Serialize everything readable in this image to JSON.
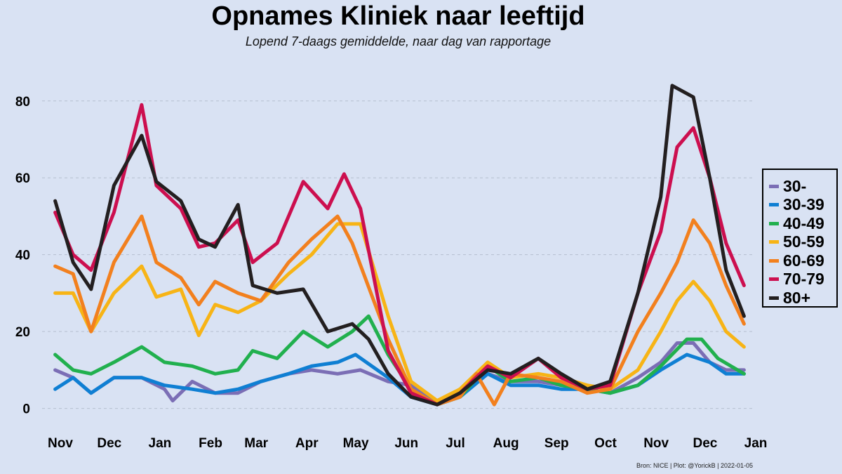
{
  "header": {
    "title": "Opnames Kliniek naar leeftijd",
    "subtitle": "Lopend 7-daags gemiddelde, naar dag van rapportage"
  },
  "source_note": "Bron: NICE | Plot: @YorickB  |  2022-01-05",
  "chart_data": {
    "type": "line",
    "title": "Opnames Kliniek naar leeftijd",
    "subtitle": "Lopend 7-daags gemiddelde, naar dag van rapportage",
    "xlabel": "",
    "ylabel": "",
    "x_range": [
      "2020-11-01",
      "2022-01-10"
    ],
    "ylim": [
      -3,
      88
    ],
    "x_ticks": [
      {
        "date": "2020-11-01",
        "label": "Nov"
      },
      {
        "date": "2020-12-01",
        "label": "Dec"
      },
      {
        "date": "2021-01-01",
        "label": "Jan"
      },
      {
        "date": "2021-02-01",
        "label": "Feb"
      },
      {
        "date": "2021-03-01",
        "label": "Mar"
      },
      {
        "date": "2021-04-01",
        "label": "Apr"
      },
      {
        "date": "2021-05-01",
        "label": "May"
      },
      {
        "date": "2021-06-01",
        "label": "Jun"
      },
      {
        "date": "2021-07-01",
        "label": "Jul"
      },
      {
        "date": "2021-08-01",
        "label": "Aug"
      },
      {
        "date": "2021-09-01",
        "label": "Sep"
      },
      {
        "date": "2021-10-01",
        "label": "Oct"
      },
      {
        "date": "2021-11-01",
        "label": "Nov"
      },
      {
        "date": "2021-12-01",
        "label": "Dec"
      },
      {
        "date": "2022-01-01",
        "label": "Jan"
      }
    ],
    "y_ticks": [
      0,
      20,
      40,
      60,
      80
    ],
    "grid": "horizontal dashed",
    "legend_position": "right",
    "series": [
      {
        "name": "30-",
        "color": "#7b6eb5",
        "points": [
          [
            "2020-11-09",
            10
          ],
          [
            "2020-11-20",
            8
          ],
          [
            "2020-12-01",
            4
          ],
          [
            "2020-12-15",
            8
          ],
          [
            "2021-01-01",
            8
          ],
          [
            "2021-01-15",
            5
          ],
          [
            "2021-01-20",
            2
          ],
          [
            "2021-02-01",
            7
          ],
          [
            "2021-02-15",
            4
          ],
          [
            "2021-03-01",
            4
          ],
          [
            "2021-03-15",
            7
          ],
          [
            "2021-04-01",
            9
          ],
          [
            "2021-04-15",
            10
          ],
          [
            "2021-05-01",
            9
          ],
          [
            "2021-05-15",
            10
          ],
          [
            "2021-06-01",
            7
          ],
          [
            "2021-06-15",
            6
          ],
          [
            "2021-07-01",
            1
          ],
          [
            "2021-07-15",
            5
          ],
          [
            "2021-08-01",
            9
          ],
          [
            "2021-08-15",
            7
          ],
          [
            "2021-09-01",
            7
          ],
          [
            "2021-09-15",
            6
          ],
          [
            "2021-10-01",
            5
          ],
          [
            "2021-10-15",
            4
          ],
          [
            "2021-11-01",
            8
          ],
          [
            "2021-11-15",
            12
          ],
          [
            "2021-11-25",
            17
          ],
          [
            "2021-12-05",
            17
          ],
          [
            "2021-12-15",
            12
          ],
          [
            "2021-12-25",
            10
          ],
          [
            "2022-01-05",
            10
          ]
        ]
      },
      {
        "name": "30-39",
        "color": "#0f7fd3",
        "points": [
          [
            "2020-11-09",
            5
          ],
          [
            "2020-11-20",
            8
          ],
          [
            "2020-12-01",
            4
          ],
          [
            "2020-12-15",
            8
          ],
          [
            "2021-01-01",
            8
          ],
          [
            "2021-01-15",
            6
          ],
          [
            "2021-02-01",
            5
          ],
          [
            "2021-02-15",
            4
          ],
          [
            "2021-03-01",
            5
          ],
          [
            "2021-03-15",
            7
          ],
          [
            "2021-04-01",
            9
          ],
          [
            "2021-04-15",
            11
          ],
          [
            "2021-05-01",
            12
          ],
          [
            "2021-05-12",
            14
          ],
          [
            "2021-06-01",
            8
          ],
          [
            "2021-06-15",
            3
          ],
          [
            "2021-07-01",
            1
          ],
          [
            "2021-07-15",
            3
          ],
          [
            "2021-08-01",
            9
          ],
          [
            "2021-08-15",
            6
          ],
          [
            "2021-09-01",
            6
          ],
          [
            "2021-09-15",
            5
          ],
          [
            "2021-10-01",
            5
          ],
          [
            "2021-10-15",
            4
          ],
          [
            "2021-11-01",
            6
          ],
          [
            "2021-11-15",
            10
          ],
          [
            "2021-12-01",
            14
          ],
          [
            "2021-12-15",
            12
          ],
          [
            "2021-12-25",
            9
          ],
          [
            "2022-01-05",
            9
          ]
        ]
      },
      {
        "name": "40-49",
        "color": "#21b04e",
        "points": [
          [
            "2020-11-09",
            14
          ],
          [
            "2020-11-20",
            10
          ],
          [
            "2020-12-01",
            9
          ],
          [
            "2020-12-15",
            12
          ],
          [
            "2021-01-01",
            16
          ],
          [
            "2021-01-15",
            12
          ],
          [
            "2021-02-01",
            11
          ],
          [
            "2021-02-15",
            9
          ],
          [
            "2021-03-01",
            10
          ],
          [
            "2021-03-10",
            15
          ],
          [
            "2021-03-25",
            13
          ],
          [
            "2021-04-10",
            20
          ],
          [
            "2021-04-25",
            16
          ],
          [
            "2021-05-10",
            20
          ],
          [
            "2021-05-20",
            24
          ],
          [
            "2021-06-01",
            14
          ],
          [
            "2021-06-15",
            5
          ],
          [
            "2021-07-01",
            1
          ],
          [
            "2021-07-15",
            3
          ],
          [
            "2021-08-01",
            11
          ],
          [
            "2021-08-15",
            7
          ],
          [
            "2021-09-01",
            8
          ],
          [
            "2021-09-15",
            6
          ],
          [
            "2021-10-01",
            5
          ],
          [
            "2021-10-15",
            4
          ],
          [
            "2021-11-01",
            6
          ],
          [
            "2021-11-15",
            11
          ],
          [
            "2021-12-01",
            18
          ],
          [
            "2021-12-10",
            18
          ],
          [
            "2021-12-20",
            13
          ],
          [
            "2022-01-05",
            9
          ]
        ]
      },
      {
        "name": "50-59",
        "color": "#f7b416",
        "points": [
          [
            "2020-11-09",
            30
          ],
          [
            "2020-11-20",
            30
          ],
          [
            "2020-12-01",
            20
          ],
          [
            "2020-12-15",
            30
          ],
          [
            "2021-01-01",
            37
          ],
          [
            "2021-01-10",
            29
          ],
          [
            "2021-01-25",
            31
          ],
          [
            "2021-02-05",
            19
          ],
          [
            "2021-02-15",
            27
          ],
          [
            "2021-03-01",
            25
          ],
          [
            "2021-03-15",
            28
          ],
          [
            "2021-04-01",
            35
          ],
          [
            "2021-04-15",
            40
          ],
          [
            "2021-05-01",
            48
          ],
          [
            "2021-05-15",
            48
          ],
          [
            "2021-06-01",
            24
          ],
          [
            "2021-06-15",
            7
          ],
          [
            "2021-07-01",
            2
          ],
          [
            "2021-07-15",
            5
          ],
          [
            "2021-08-01",
            12
          ],
          [
            "2021-08-15",
            8
          ],
          [
            "2021-09-01",
            9
          ],
          [
            "2021-09-15",
            8
          ],
          [
            "2021-10-01",
            6
          ],
          [
            "2021-10-15",
            5
          ],
          [
            "2021-11-01",
            10
          ],
          [
            "2021-11-15",
            20
          ],
          [
            "2021-11-25",
            28
          ],
          [
            "2021-12-05",
            33
          ],
          [
            "2021-12-15",
            28
          ],
          [
            "2021-12-25",
            20
          ],
          [
            "2022-01-05",
            16
          ]
        ]
      },
      {
        "name": "60-69",
        "color": "#f2801e",
        "points": [
          [
            "2020-11-09",
            37
          ],
          [
            "2020-11-20",
            35
          ],
          [
            "2020-12-01",
            20
          ],
          [
            "2020-12-15",
            38
          ],
          [
            "2021-01-01",
            50
          ],
          [
            "2021-01-10",
            38
          ],
          [
            "2021-01-25",
            34
          ],
          [
            "2021-02-05",
            27
          ],
          [
            "2021-02-15",
            33
          ],
          [
            "2021-03-01",
            30
          ],
          [
            "2021-03-15",
            28
          ],
          [
            "2021-04-01",
            38
          ],
          [
            "2021-04-15",
            44
          ],
          [
            "2021-05-01",
            50
          ],
          [
            "2021-05-10",
            43
          ],
          [
            "2021-06-01",
            18
          ],
          [
            "2021-06-15",
            5
          ],
          [
            "2021-07-01",
            1
          ],
          [
            "2021-07-15",
            3
          ],
          [
            "2021-07-25",
            9
          ],
          [
            "2021-08-05",
            1
          ],
          [
            "2021-08-15",
            9
          ],
          [
            "2021-09-01",
            8
          ],
          [
            "2021-09-15",
            7
          ],
          [
            "2021-10-01",
            4
          ],
          [
            "2021-10-15",
            5
          ],
          [
            "2021-11-01",
            20
          ],
          [
            "2021-11-15",
            30
          ],
          [
            "2021-11-25",
            38
          ],
          [
            "2021-12-05",
            49
          ],
          [
            "2021-12-15",
            43
          ],
          [
            "2021-12-25",
            32
          ],
          [
            "2022-01-05",
            22
          ]
        ]
      },
      {
        "name": "70-79",
        "color": "#cc0f4f",
        "points": [
          [
            "2020-11-09",
            51
          ],
          [
            "2020-11-20",
            40
          ],
          [
            "2020-12-01",
            36
          ],
          [
            "2020-12-15",
            51
          ],
          [
            "2021-01-01",
            79
          ],
          [
            "2021-01-10",
            58
          ],
          [
            "2021-01-25",
            52
          ],
          [
            "2021-02-05",
            42
          ],
          [
            "2021-02-15",
            43
          ],
          [
            "2021-03-01",
            49
          ],
          [
            "2021-03-10",
            38
          ],
          [
            "2021-03-25",
            43
          ],
          [
            "2021-04-10",
            59
          ],
          [
            "2021-04-25",
            52
          ],
          [
            "2021-05-05",
            61
          ],
          [
            "2021-05-15",
            52
          ],
          [
            "2021-06-01",
            15
          ],
          [
            "2021-06-15",
            4
          ],
          [
            "2021-07-01",
            1
          ],
          [
            "2021-07-15",
            4
          ],
          [
            "2021-08-01",
            11
          ],
          [
            "2021-08-15",
            8
          ],
          [
            "2021-09-01",
            13
          ],
          [
            "2021-09-15",
            8
          ],
          [
            "2021-10-01",
            5
          ],
          [
            "2021-10-15",
            6
          ],
          [
            "2021-11-01",
            30
          ],
          [
            "2021-11-15",
            46
          ],
          [
            "2021-11-25",
            68
          ],
          [
            "2021-12-05",
            73
          ],
          [
            "2021-12-15",
            60
          ],
          [
            "2021-12-25",
            43
          ],
          [
            "2022-01-05",
            32
          ]
        ]
      },
      {
        "name": "80+",
        "color": "#231f20",
        "points": [
          [
            "2020-11-09",
            54
          ],
          [
            "2020-11-20",
            38
          ],
          [
            "2020-12-01",
            31
          ],
          [
            "2020-12-15",
            58
          ],
          [
            "2021-01-01",
            71
          ],
          [
            "2021-01-10",
            59
          ],
          [
            "2021-01-25",
            54
          ],
          [
            "2021-02-05",
            44
          ],
          [
            "2021-02-15",
            42
          ],
          [
            "2021-03-01",
            53
          ],
          [
            "2021-03-10",
            32
          ],
          [
            "2021-03-25",
            30
          ],
          [
            "2021-04-10",
            31
          ],
          [
            "2021-04-25",
            20
          ],
          [
            "2021-05-10",
            22
          ],
          [
            "2021-05-20",
            18
          ],
          [
            "2021-06-01",
            9
          ],
          [
            "2021-06-15",
            3
          ],
          [
            "2021-07-01",
            1
          ],
          [
            "2021-07-15",
            4
          ],
          [
            "2021-08-01",
            10
          ],
          [
            "2021-08-15",
            9
          ],
          [
            "2021-09-01",
            13
          ],
          [
            "2021-09-15",
            9
          ],
          [
            "2021-10-01",
            5
          ],
          [
            "2021-10-15",
            7
          ],
          [
            "2021-11-01",
            30
          ],
          [
            "2021-11-15",
            55
          ],
          [
            "2021-11-22",
            84
          ],
          [
            "2021-12-05",
            81
          ],
          [
            "2021-12-15",
            60
          ],
          [
            "2021-12-25",
            36
          ],
          [
            "2022-01-05",
            24
          ]
        ]
      }
    ]
  }
}
